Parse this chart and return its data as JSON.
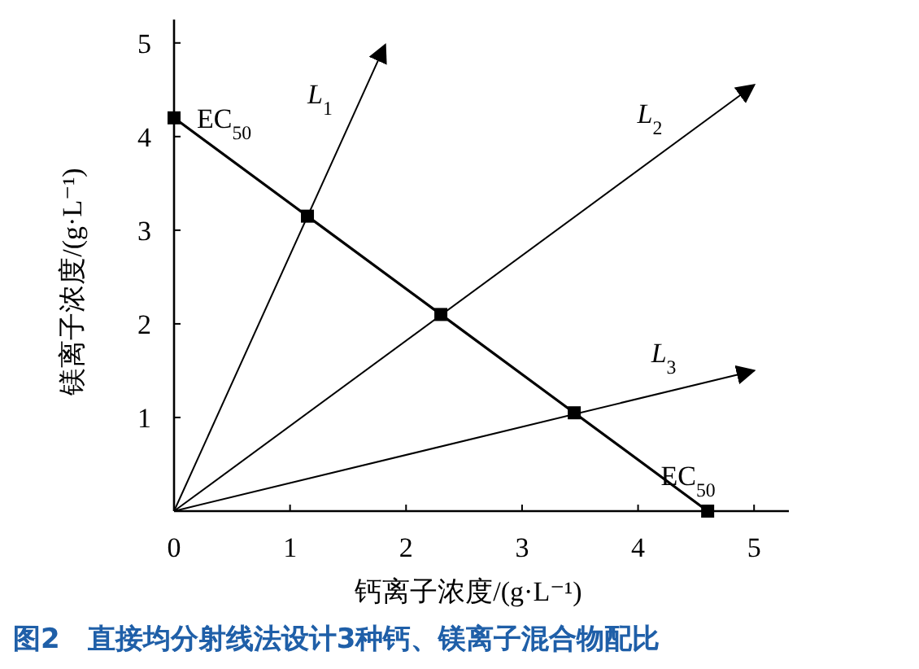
{
  "chart_data": {
    "type": "line",
    "title": "图2　直接均分射线法设计3种钙、镁离子混合物配比",
    "xlabel": "钙离子浓度/(g·L⁻¹)",
    "ylabel": "镁离子浓度/(g·L⁻¹)",
    "series": [
      {
        "color": "#000000",
        "marker": "square",
        "x": [
          0,
          1.15,
          2.3,
          3.45,
          4.6
        ],
        "values": [
          4.2,
          3.15,
          2.1,
          1.05,
          0
        ]
      },
      {
        "name": "L$_{1}$",
        "color": "#000000",
        "marker": "none",
        "x": [
          0,
          1.82
        ],
        "values": [
          0,
          4.98
        ]
      },
      {
        "name": "L$_{2}$",
        "color": "#000000",
        "marker": "none",
        "x": [
          0,
          5.0
        ],
        "values": [
          0,
          4.55
        ]
      },
      {
        "name": "L$_{3}$",
        "color": "#000000",
        "marker": "none",
        "x": [
          0,
          5.0
        ],
        "values": [
          0,
          1.5
        ]
      }
    ],
    "annotations": [
      "EC$_{50}$",
      "EC$_{50}$"
    ],
    "xlim": [
      0,
      5.3
    ],
    "ylim": [
      0,
      5.25
    ],
    "xticks": [
      {
        "value": 0,
        "label": "0"
      },
      1,
      2,
      3,
      4,
      5
    ],
    "yticks": [
      {
        "value": 0,
        "label": null
      },
      1,
      2,
      3,
      4,
      5
    ],
    "grid": false
  }
}
